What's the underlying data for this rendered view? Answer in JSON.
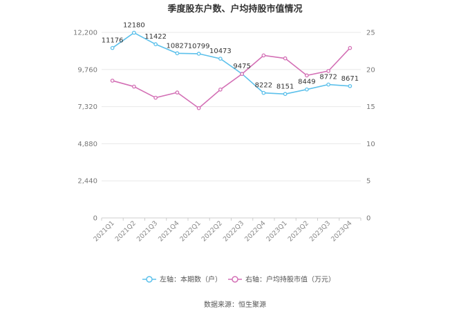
{
  "chart_data": {
    "type": "line",
    "title": "季度股东户数、户均持股市值情况",
    "categories": [
      "2021Q1",
      "2021Q2",
      "2021Q3",
      "2021Q4",
      "2022Q1",
      "2022Q2",
      "2022Q3",
      "2022Q4",
      "2023Q1",
      "2023Q2",
      "2023Q3",
      "2023Q4"
    ],
    "left_axis": {
      "min": 0,
      "max": 12200,
      "ticks": [
        0,
        2440,
        4880,
        7320,
        9760,
        12200
      ],
      "tick_labels": [
        "0",
        "2,440",
        "4,880",
        "7,320",
        "9,760",
        "12,200"
      ]
    },
    "right_axis": {
      "min": 0,
      "max": 25,
      "ticks": [
        0,
        5,
        10,
        15,
        20,
        25
      ],
      "tick_labels": [
        "0",
        "5",
        "10",
        "15",
        "20",
        "25"
      ]
    },
    "series": [
      {
        "name": "左轴：本期数（户）",
        "axis": "left",
        "color": "#5bc0eb",
        "values": [
          11176,
          12180,
          11422,
          10827,
          10799,
          10473,
          9475,
          8222,
          8151,
          8449,
          8772,
          8671
        ],
        "data_labels": [
          "11176",
          "12180",
          "11422",
          "10827",
          "10799",
          "10473",
          "9475",
          "8222",
          "8151",
          "8449",
          "8772",
          "8671"
        ]
      },
      {
        "name": "右轴：户均持股市值（万元）",
        "axis": "right",
        "color": "#d36fb5",
        "values": [
          18.5,
          17.7,
          16.2,
          16.9,
          14.8,
          17.3,
          19.4,
          21.9,
          21.5,
          19.2,
          19.8,
          22.9
        ]
      }
    ],
    "legend_position": "bottom-center",
    "grid": true,
    "source": "数据来源：恒生聚源"
  }
}
